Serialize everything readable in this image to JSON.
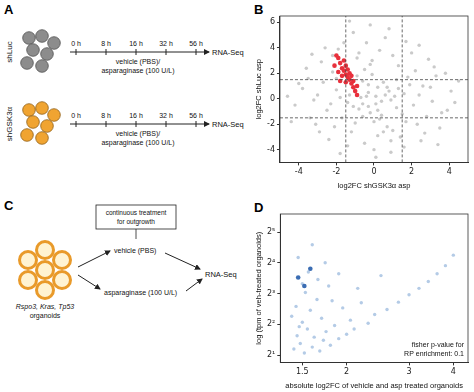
{
  "panels": {
    "A": {
      "label": "A",
      "rows": [
        {
          "name": "shLuc",
          "color": "#8c8c8c"
        },
        {
          "name": "shGSK3α",
          "color": "#f0a431"
        }
      ],
      "timepoints": [
        "0 h",
        "8 h",
        "16 h",
        "32 h",
        "56 h"
      ],
      "treatment": [
        "vehicle (PBS)/",
        "asparaginase (100 U/L)"
      ],
      "readout": "RNA-Seq"
    },
    "C": {
      "label": "C",
      "organoids": [
        "Rspo3, Kras, Tp53",
        "organoids"
      ],
      "box": [
        "continuous treatment",
        "for outgrowth"
      ],
      "arms": [
        "vehicle (PBS)",
        "asparaginase (100 U/L)"
      ],
      "readout": "RNA-Seq"
    }
  },
  "chart_data": [
    {
      "panel": "B",
      "type": "scatter",
      "x_label": "log2FC shGSK3α asp",
      "y_label": "log2FC shLuc asp",
      "xlim": [
        -5,
        5
      ],
      "xticks": [
        -4,
        -2,
        0,
        2,
        4
      ],
      "ylim": [
        -5,
        6.5
      ],
      "yticks": [
        -4,
        -2,
        0,
        2,
        4,
        6
      ],
      "grid": false,
      "x_lines": [
        -1.5,
        1.5
      ],
      "y_lines": [
        -1.5,
        1.5
      ],
      "series": [
        {
          "color": "#cacaca",
          "values": [
            [
              0.1,
              0.2
            ],
            [
              -0.3,
              0.5
            ],
            [
              0.4,
              -0.2
            ],
            [
              -0.6,
              -0.4
            ],
            [
              0.8,
              0.6
            ],
            [
              -1.0,
              0.9
            ],
            [
              1.2,
              -0.7
            ],
            [
              -0.2,
              -1.1
            ],
            [
              0.5,
              1.3
            ],
            [
              -1.4,
              -0.3
            ],
            [
              1.6,
              0.4
            ],
            [
              -0.9,
              1.8
            ],
            [
              0.3,
              -1.6
            ],
            [
              -2.0,
              0.7
            ],
            [
              2.1,
              -0.5
            ],
            [
              -1.7,
              -1.5
            ],
            [
              1.8,
              1.7
            ],
            [
              -0.5,
              2.3
            ],
            [
              0.7,
              -2.2
            ],
            [
              -2.5,
              -0.9
            ],
            [
              2.6,
              1.0
            ],
            [
              -3.0,
              0.3
            ],
            [
              3.1,
              -0.2
            ],
            [
              -0.1,
              3.0
            ],
            [
              0.2,
              -2.9
            ],
            [
              -2.2,
              2.1
            ],
            [
              2.3,
              -2.0
            ],
            [
              -1.2,
              -2.6
            ],
            [
              1.3,
              2.6
            ],
            [
              -3.4,
              -1.5
            ],
            [
              3.3,
              1.8
            ],
            [
              -0.8,
              3.6
            ],
            [
              0.9,
              -3.3
            ],
            [
              -2.8,
              2.9
            ],
            [
              2.7,
              -2.7
            ],
            [
              -3.8,
              0.8
            ],
            [
              3.9,
              -0.9
            ],
            [
              -1.9,
              3.9
            ],
            [
              1.6,
              -3.8
            ],
            [
              -0.4,
              4.4
            ],
            [
              0.6,
              4.8
            ],
            [
              -1.1,
              5.2
            ],
            [
              0.0,
              -4.0
            ],
            [
              -2.4,
              -3.2
            ],
            [
              2.9,
              3.1
            ],
            [
              -3.6,
              2.4
            ],
            [
              3.5,
              -2.3
            ],
            [
              -4.2,
              -0.5
            ],
            [
              4.1,
              0.6
            ],
            [
              -0.7,
              0.1
            ],
            [
              0.9,
              -0.1
            ],
            [
              -0.3,
              -0.6
            ],
            [
              0.2,
              0.9
            ],
            [
              -1.3,
              0.3
            ],
            [
              1.1,
              0.2
            ],
            [
              -0.6,
              1.4
            ],
            [
              0.4,
              -1.3
            ],
            [
              -1.8,
              0.1
            ],
            [
              1.5,
              -1.2
            ],
            [
              -0.1,
              1.9
            ],
            [
              0.0,
              -1.8
            ],
            [
              -2.3,
              -0.4
            ],
            [
              2.4,
              0.3
            ],
            [
              -1.5,
              2.5
            ],
            [
              1.0,
              -2.5
            ],
            [
              -2.7,
              1.3
            ],
            [
              2.8,
              -1.4
            ],
            [
              -0.2,
              2.7
            ],
            [
              0.5,
              -2.6
            ],
            [
              -3.2,
              -0.1
            ],
            [
              3.0,
              0.9
            ],
            [
              -1.0,
              -1.9
            ],
            [
              1.9,
              1.1
            ],
            [
              -2.1,
              -2.2
            ],
            [
              2.2,
              2.2
            ],
            [
              -0.9,
              3.2
            ],
            [
              1.4,
              -3.0
            ],
            [
              -3.5,
              1.6
            ],
            [
              3.6,
              -1.1
            ],
            [
              -1.6,
              4.4
            ],
            [
              0.3,
              3.8
            ],
            [
              -0.5,
              -3.5
            ],
            [
              2.0,
              3.6
            ],
            [
              -2.9,
              -2.6
            ],
            [
              3.2,
              2.5
            ],
            [
              -4.0,
              1.2
            ],
            [
              4.3,
              -0.3
            ],
            [
              -0.2,
              5.8
            ],
            [
              0.8,
              5.5
            ],
            [
              -1.3,
              6.1
            ],
            [
              1.7,
              4.5
            ],
            [
              -2.6,
              4.0
            ],
            [
              -4.4,
              -1.8
            ],
            [
              0.6,
              0.3
            ],
            [
              -0.4,
              0.2
            ],
            [
              0.1,
              -0.4
            ],
            [
              -0.8,
              -0.8
            ],
            [
              0.7,
              0.9
            ],
            [
              -1.1,
              -0.6
            ],
            [
              1.3,
              0.8
            ],
            [
              -0.3,
              1.1
            ],
            [
              0.2,
              -0.9
            ],
            [
              -2.0,
              1.6
            ],
            [
              1.7,
              -1.8
            ],
            [
              -0.6,
              -1.4
            ],
            [
              1.2,
              1.5
            ],
            [
              -3.1,
              -2.0
            ],
            [
              2.5,
              -3.3
            ],
            [
              -1.4,
              -3.7
            ],
            [
              3.8,
              2.0
            ],
            [
              0.1,
              -4.6
            ],
            [
              -2.2,
              3.4
            ],
            [
              1.0,
              3.4
            ],
            [
              4.5,
              1.4
            ],
            [
              -4.6,
              0.2
            ],
            [
              2.4,
              4.2
            ],
            [
              -3.3,
              3.5
            ],
            [
              3.4,
              -3.6
            ],
            [
              -1.8,
              -4.3
            ],
            [
              0.9,
              -4.2
            ]
          ]
        },
        {
          "color": "#e8303c",
          "values": [
            [
              -0.9,
              0.3
            ],
            [
              -1.0,
              0.6
            ],
            [
              -1.1,
              0.9
            ],
            [
              -1.2,
              1.2
            ],
            [
              -1.3,
              1.5
            ],
            [
              -1.4,
              1.7
            ],
            [
              -1.5,
              1.9
            ],
            [
              -1.3,
              2.0
            ],
            [
              -1.6,
              2.2
            ],
            [
              -1.7,
              2.4
            ],
            [
              -1.5,
              2.6
            ],
            [
              -1.8,
              2.8
            ],
            [
              -1.6,
              3.0
            ],
            [
              -1.9,
              3.2
            ],
            [
              -2.0,
              3.4
            ],
            [
              -1.2,
              1.8
            ],
            [
              -1.4,
              2.3
            ],
            [
              -1.1,
              1.4
            ],
            [
              -0.9,
              1.0
            ],
            [
              -1.7,
              1.8
            ],
            [
              -2.1,
              2.6
            ],
            [
              -1.8,
              1.4
            ],
            [
              -1.5,
              1.3
            ],
            [
              -1.9,
              2.1
            ]
          ]
        }
      ]
    },
    {
      "panel": "D",
      "type": "scatter",
      "log": true,
      "x_label": "absolute log2FC of vehicle and asp treated organoids",
      "y_label": "log (tpm of veh-treated organoids)",
      "xlim": [
        1.3,
        4.4
      ],
      "xticks": [
        1.5,
        2,
        3,
        4
      ],
      "ylim": [
        1.7,
        48
      ],
      "yticks": [
        {
          "value": 2,
          "label": "2¹"
        },
        {
          "value": 4,
          "label": "2²"
        },
        {
          "value": 8,
          "label": "2³"
        },
        {
          "value": 16,
          "label": "2⁴"
        },
        {
          "value": 32,
          "label": "2⁵"
        }
      ],
      "grid": false,
      "annotation": [
        "fisher p-value for",
        "RP enrichment: 0.1"
      ],
      "series": [
        {
          "color": "#b4cbe6",
          "values": [
            [
              1.42,
              2.3
            ],
            [
              1.45,
              3.1
            ],
            [
              1.48,
              2.6
            ],
            [
              1.5,
              4.2
            ],
            [
              1.52,
              2.1
            ],
            [
              1.55,
              3.6
            ],
            [
              1.58,
              5.5
            ],
            [
              1.6,
              2.4
            ],
            [
              1.62,
              3.0
            ],
            [
              1.65,
              7.0
            ],
            [
              1.68,
              2.2
            ],
            [
              1.7,
              4.6
            ],
            [
              1.72,
              2.8
            ],
            [
              1.75,
              3.4
            ],
            [
              1.78,
              9.5
            ],
            [
              1.8,
              2.5
            ],
            [
              1.85,
              3.9
            ],
            [
              1.9,
              2.9
            ],
            [
              1.95,
              5.8
            ],
            [
              2.0,
              3.2
            ],
            [
              2.05,
              4.4
            ],
            [
              2.1,
              3.6
            ],
            [
              2.2,
              6.5
            ],
            [
              2.3,
              4.1
            ],
            [
              2.4,
              5.0
            ],
            [
              2.5,
              12.0
            ],
            [
              2.6,
              5.6
            ],
            [
              2.8,
              6.6
            ],
            [
              3.0,
              7.8
            ],
            [
              3.2,
              9.0
            ],
            [
              3.4,
              10.5
            ],
            [
              3.6,
              12.5
            ],
            [
              3.8,
              15.0
            ],
            [
              4.0,
              19.0
            ],
            [
              1.44,
              6.0
            ],
            [
              1.5,
              10.0
            ],
            [
              1.56,
              13.0
            ],
            [
              1.46,
              18.0
            ],
            [
              1.6,
              24.0
            ],
            [
              1.53,
              8.2
            ],
            [
              1.66,
              11.0
            ],
            [
              1.74,
              16.0
            ],
            [
              1.82,
              6.8
            ],
            [
              1.9,
              12.5
            ],
            [
              2.15,
              9.0
            ],
            [
              1.4,
              4.8
            ],
            [
              1.47,
              3.8
            ]
          ]
        },
        {
          "color": "#3b6db3",
          "values": [
            [
              1.46,
              11.5
            ],
            [
              1.52,
              9.5
            ],
            [
              1.58,
              14.0
            ]
          ]
        }
      ]
    }
  ]
}
